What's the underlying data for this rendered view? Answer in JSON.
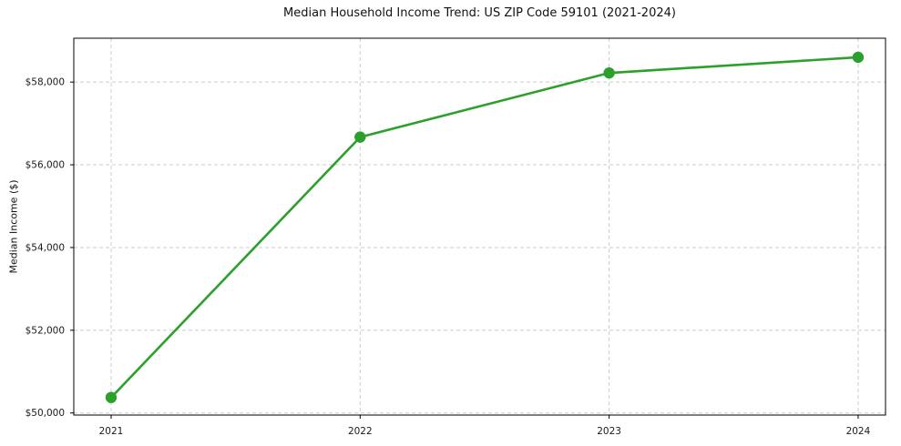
{
  "chart_data": {
    "type": "line",
    "title": "Median Household Income Trend: US ZIP Code 59101 (2021-2024)",
    "xlabel": "",
    "ylabel": "Median Income ($)",
    "x": [
      2021,
      2022,
      2023,
      2024
    ],
    "x_tick_labels": [
      "2021",
      "2022",
      "2023",
      "2024"
    ],
    "series": [
      {
        "name": "Median household income",
        "values": [
          50375,
          56670,
          58220,
          58600
        ],
        "color": "#2ca02c",
        "marker": "circle"
      }
    ],
    "y_ticks": [
      {
        "value": 50000,
        "label": "$50,000"
      },
      {
        "value": 52000,
        "label": "$52,000"
      },
      {
        "value": 54000,
        "label": "$54,000"
      },
      {
        "value": 56000,
        "label": "$56,000"
      },
      {
        "value": 58000,
        "label": "$58,000"
      }
    ],
    "xlim": [
      2020.85,
      2024.11
    ],
    "ylim": [
      49950,
      59060
    ],
    "grid": true,
    "grid_style": "dashed",
    "grid_color": "#cccccc",
    "axis_color": "#000000",
    "text_color": "#1a1a1a",
    "background_color": "#ffffff",
    "legend": "none"
  }
}
